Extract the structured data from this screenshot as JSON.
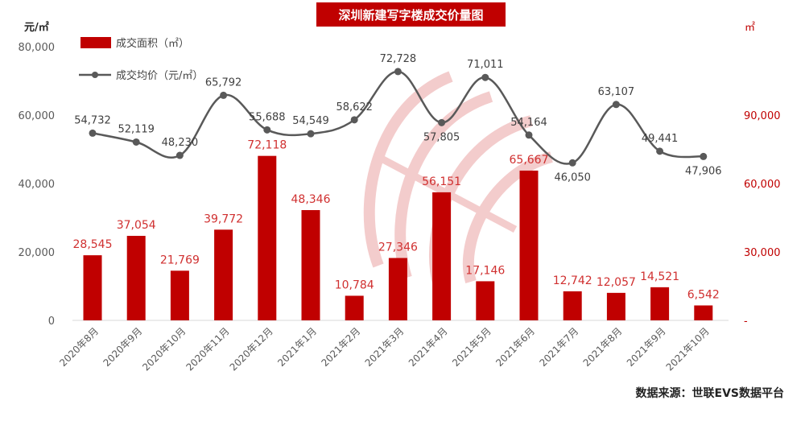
{
  "chart_data": {
    "type": "bar",
    "title": "深圳新建写字楼成交价量图",
    "source": "数据来源：世联EVS数据平台",
    "categories": [
      "2020年8月",
      "2020年9月",
      "2020年10月",
      "2020年11月",
      "2020年12月",
      "2021年1月",
      "2021年2月",
      "2021年3月",
      "2021年4月",
      "2021年5月",
      "2021年6月",
      "2021年7月",
      "2021年8月",
      "2021年9月",
      "2021年10月"
    ],
    "left_axis": {
      "unit": "元/㎡",
      "ticks": [
        "80,000",
        "60,000",
        "40,000",
        "20,000",
        "0"
      ],
      "ylim": [
        0,
        80000
      ]
    },
    "right_axis": {
      "unit": "㎡",
      "ticks": [
        "90,000",
        "60,000",
        "30,000",
        "-"
      ],
      "ylim": [
        0,
        120000
      ]
    },
    "series": [
      {
        "name": "成交面积（㎡）",
        "type": "bar",
        "axis": "right",
        "color": "#c00000",
        "values": [
          28545,
          37054,
          21769,
          39772,
          72118,
          48346,
          10784,
          27346,
          56151,
          17146,
          65667,
          12742,
          12057,
          14521,
          6542
        ],
        "labels": [
          "28,545",
          "37,054",
          "21,769",
          "39,772",
          "72,118",
          "48,346",
          "10,784",
          "27,346",
          "56,151",
          "17,146",
          "65,667",
          "12,742",
          "12,057",
          "14,521",
          "6,542"
        ]
      },
      {
        "name": "成交均价（元/㎡）",
        "type": "line",
        "axis": "left",
        "color": "#595959",
        "values": [
          54732,
          52119,
          48230,
          65792,
          55688,
          54549,
          58622,
          72728,
          57805,
          71011,
          54164,
          46050,
          63107,
          49441,
          47906
        ],
        "labels": [
          "54,732",
          "52,119",
          "48,230",
          "65,792",
          "55,688",
          "54,549",
          "58,622",
          "72,728",
          "57,805",
          "71,011",
          "54,164",
          "46,050",
          "63,107",
          "49,441",
          "47,906"
        ]
      }
    ],
    "grid": false,
    "legend": "top-left",
    "colors": {
      "bar": "#c00000",
      "line": "#595959",
      "bar_label": "#d03030",
      "title_bg": "#c00000",
      "watermark": "#f2c0c0"
    }
  }
}
